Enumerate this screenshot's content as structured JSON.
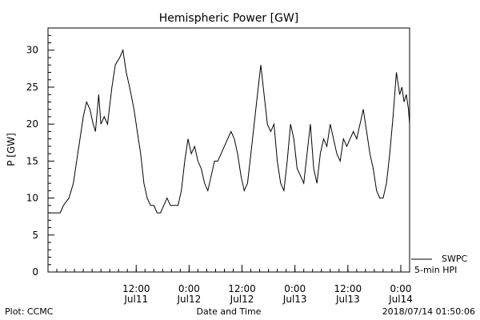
{
  "chart_data": {
    "type": "line",
    "title": "Hemispheric Power [GW]",
    "ylabel": "P [GW]",
    "xlabel": "Date and Time",
    "ylim": [
      0,
      33
    ],
    "yticks": [
      0,
      5,
      10,
      15,
      20,
      25,
      30
    ],
    "xlim": [
      "2018-07-10T16:00",
      "2018-07-14T02:00"
    ],
    "xticks": [
      {
        "t": "2018-07-11T12:00",
        "line1": "12:00",
        "line2": "Jul11"
      },
      {
        "t": "2018-07-12T00:00",
        "line1": "0:00",
        "line2": "Jul12"
      },
      {
        "t": "2018-07-12T12:00",
        "line1": "12:00",
        "line2": "Jul12"
      },
      {
        "t": "2018-07-13T00:00",
        "line1": "0:00",
        "line2": "Jul13"
      },
      {
        "t": "2018-07-13T12:00",
        "line1": "12:00",
        "line2": "Jul13"
      },
      {
        "t": "2018-07-14T00:00",
        "line1": "0:00",
        "line2": "Jul14"
      }
    ],
    "legend": {
      "line1": "SWPC",
      "line2": "5-min HPI",
      "placement": "bottom-right-outside"
    },
    "series": [
      {
        "color": "#000000",
        "points": [
          [
            "2018-07-10T16:00",
            8
          ],
          [
            "2018-07-10T18:45",
            8
          ],
          [
            "2018-07-10T19:30",
            9
          ],
          [
            "2018-07-10T20:45",
            10
          ],
          [
            "2018-07-10T21:45",
            12
          ],
          [
            "2018-07-10T22:30",
            15
          ],
          [
            "2018-07-10T23:15",
            18
          ],
          [
            "2018-07-11T00:00",
            21
          ],
          [
            "2018-07-11T00:45",
            23
          ],
          [
            "2018-07-11T01:30",
            22
          ],
          [
            "2018-07-11T02:15",
            20
          ],
          [
            "2018-07-11T02:45",
            19
          ],
          [
            "2018-07-11T03:30",
            24
          ],
          [
            "2018-07-11T04:00",
            20
          ],
          [
            "2018-07-11T04:45",
            21
          ],
          [
            "2018-07-11T05:30",
            20
          ],
          [
            "2018-07-11T06:30",
            25
          ],
          [
            "2018-07-11T07:15",
            28
          ],
          [
            "2018-07-11T08:15",
            29
          ],
          [
            "2018-07-11T09:00",
            30
          ],
          [
            "2018-07-11T09:45",
            27
          ],
          [
            "2018-07-11T10:30",
            25
          ],
          [
            "2018-07-11T11:30",
            22
          ],
          [
            "2018-07-11T12:15",
            19
          ],
          [
            "2018-07-11T13:00",
            16
          ],
          [
            "2018-07-11T13:45",
            12
          ],
          [
            "2018-07-11T14:30",
            10
          ],
          [
            "2018-07-11T15:15",
            9
          ],
          [
            "2018-07-11T16:00",
            9
          ],
          [
            "2018-07-11T16:45",
            8
          ],
          [
            "2018-07-11T17:30",
            8
          ],
          [
            "2018-07-11T18:15",
            9
          ],
          [
            "2018-07-11T19:00",
            10
          ],
          [
            "2018-07-11T19:45",
            9
          ],
          [
            "2018-07-11T20:30",
            9
          ],
          [
            "2018-07-11T21:30",
            9
          ],
          [
            "2018-07-11T22:15",
            11
          ],
          [
            "2018-07-11T23:00",
            15
          ],
          [
            "2018-07-11T23:45",
            18
          ],
          [
            "2018-07-12T00:30",
            16
          ],
          [
            "2018-07-12T01:15",
            17
          ],
          [
            "2018-07-12T02:00",
            15
          ],
          [
            "2018-07-12T02:45",
            14
          ],
          [
            "2018-07-12T03:30",
            12
          ],
          [
            "2018-07-12T04:15",
            11
          ],
          [
            "2018-07-12T05:00",
            13
          ],
          [
            "2018-07-12T05:45",
            15
          ],
          [
            "2018-07-12T06:30",
            15
          ],
          [
            "2018-07-12T07:15",
            16
          ],
          [
            "2018-07-12T08:00",
            17
          ],
          [
            "2018-07-12T08:45",
            18
          ],
          [
            "2018-07-12T09:30",
            19
          ],
          [
            "2018-07-12T10:15",
            18
          ],
          [
            "2018-07-12T11:00",
            16
          ],
          [
            "2018-07-12T11:45",
            13
          ],
          [
            "2018-07-12T12:30",
            11
          ],
          [
            "2018-07-12T13:15",
            12
          ],
          [
            "2018-07-12T14:00",
            16
          ],
          [
            "2018-07-12T14:45",
            20
          ],
          [
            "2018-07-12T15:30",
            24
          ],
          [
            "2018-07-12T16:15",
            28
          ],
          [
            "2018-07-12T17:00",
            24
          ],
          [
            "2018-07-12T17:45",
            20
          ],
          [
            "2018-07-12T18:30",
            19
          ],
          [
            "2018-07-12T19:15",
            20
          ],
          [
            "2018-07-12T20:00",
            15
          ],
          [
            "2018-07-12T20:45",
            12
          ],
          [
            "2018-07-12T21:30",
            11
          ],
          [
            "2018-07-12T22:15",
            15
          ],
          [
            "2018-07-12T23:00",
            20
          ],
          [
            "2018-07-12T23:45",
            18
          ],
          [
            "2018-07-13T00:30",
            14
          ],
          [
            "2018-07-13T01:15",
            13
          ],
          [
            "2018-07-13T02:00",
            12
          ],
          [
            "2018-07-13T02:45",
            16
          ],
          [
            "2018-07-13T03:30",
            20
          ],
          [
            "2018-07-13T04:15",
            14
          ],
          [
            "2018-07-13T05:00",
            12
          ],
          [
            "2018-07-13T05:45",
            16
          ],
          [
            "2018-07-13T06:30",
            18
          ],
          [
            "2018-07-13T07:15",
            17
          ],
          [
            "2018-07-13T08:00",
            20
          ],
          [
            "2018-07-13T08:45",
            18
          ],
          [
            "2018-07-13T09:30",
            16
          ],
          [
            "2018-07-13T10:15",
            15
          ],
          [
            "2018-07-13T11:00",
            18
          ],
          [
            "2018-07-13T11:45",
            17
          ],
          [
            "2018-07-13T12:30",
            18
          ],
          [
            "2018-07-13T13:15",
            19
          ],
          [
            "2018-07-13T14:00",
            18
          ],
          [
            "2018-07-13T14:45",
            20
          ],
          [
            "2018-07-13T15:30",
            22
          ],
          [
            "2018-07-13T16:15",
            19
          ],
          [
            "2018-07-13T17:00",
            16
          ],
          [
            "2018-07-13T17:45",
            14
          ],
          [
            "2018-07-13T18:30",
            11
          ],
          [
            "2018-07-13T19:15",
            10
          ],
          [
            "2018-07-13T20:00",
            10
          ],
          [
            "2018-07-13T20:45",
            12
          ],
          [
            "2018-07-13T21:30",
            16
          ],
          [
            "2018-07-13T22:15",
            21
          ],
          [
            "2018-07-13T23:00",
            27
          ],
          [
            "2018-07-13T23:45",
            24
          ],
          [
            "2018-07-14T00:15",
            25
          ],
          [
            "2018-07-14T00:45",
            23
          ],
          [
            "2018-07-14T01:15",
            24
          ],
          [
            "2018-07-14T01:45",
            22
          ],
          [
            "2018-07-14T02:00",
            20
          ]
        ]
      }
    ]
  },
  "footer": {
    "left": "Plot: CCMC",
    "center": "Date and Time",
    "right": "2018/07/14 01:50:06"
  }
}
